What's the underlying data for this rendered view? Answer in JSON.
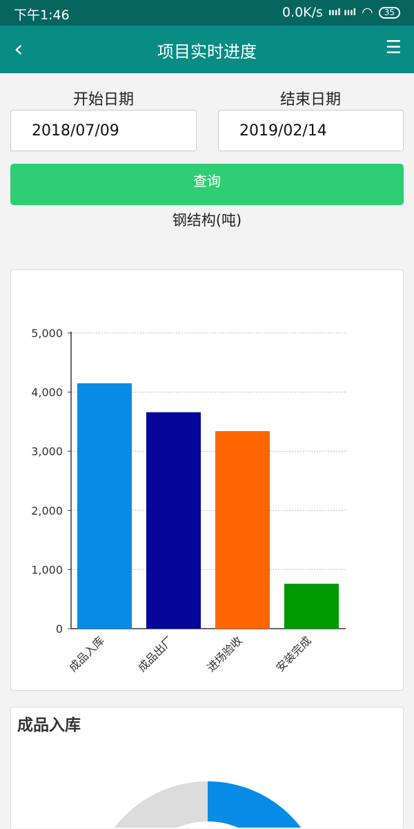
{
  "status": {
    "time": "下午1:46",
    "net": "0.0K/s",
    "signal": "ıııl ıııl",
    "battery": "35"
  },
  "appbar": {
    "title": "项目实时进度",
    "back": "‹",
    "menu": "☰"
  },
  "form": {
    "start_label": "开始日期",
    "end_label": "结束日期",
    "start_value": "2018/07/09",
    "end_value": "2019/02/14",
    "query": "查询"
  },
  "chart_data": {
    "type": "bar",
    "title": "钢结构(吨)",
    "categories": [
      "成品入库",
      "成品出厂",
      "进场验收",
      "安装完成"
    ],
    "values": [
      4150,
      3660,
      3340,
      760
    ],
    "colors": [
      "#078ce6",
      "#060699",
      "#ff6600",
      "#009900"
    ],
    "ylim": [
      0,
      5000
    ],
    "yticks": [
      "0",
      "1,000",
      "2,000",
      "3,000",
      "4,000",
      "5,000"
    ],
    "grid": true
  },
  "donut": {
    "title": "成品入库",
    "colors": {
      "done": "#078ce6",
      "rest": "#dcdcdc"
    }
  }
}
